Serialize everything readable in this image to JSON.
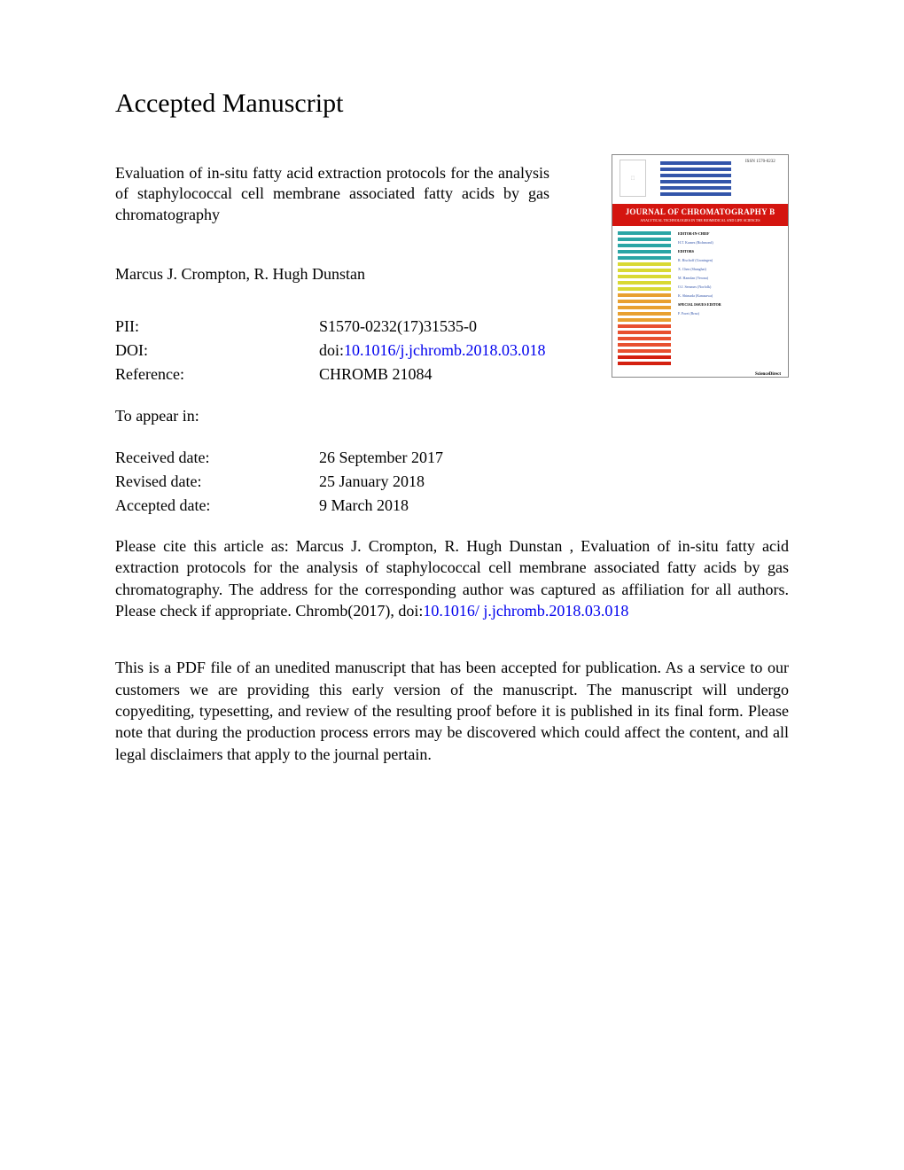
{
  "header": {
    "title": "Accepted Manuscript"
  },
  "article": {
    "title": "Evaluation of in-situ fatty acid extraction protocols for the analysis of staphylococcal cell membrane associated fatty acids by gas chromatography",
    "authors": "Marcus J. Crompton, R. Hugh Dunstan"
  },
  "meta": {
    "pii_label": "PII:",
    "pii_value": "S1570-0232(17)31535-0",
    "doi_label": "DOI:",
    "doi_prefix": "doi:",
    "doi_link": "10.1016/j.jchromb.2018.03.018",
    "ref_label": "Reference:",
    "ref_value": "CHROMB 21084",
    "appear_label": "To appear in:",
    "received_label": "Received date:",
    "received_value": "26 September 2017",
    "revised_label": "Revised date:",
    "revised_value": "25 January 2018",
    "accepted_label": "Accepted date:",
    "accepted_value": "9 March 2018"
  },
  "citation": {
    "prefix": "Please cite this article as: Marcus J. Crompton, R. Hugh Dunstan , Evaluation of in-situ fatty acid extraction protocols for the analysis of staphylococcal cell membrane associated fatty acids by gas chromatography. The address for the corresponding author was captured as affiliation for all authors. Please check if appropriate. Chromb(2017), doi:",
    "link": "10.1016/ j.jchromb.2018.03.018"
  },
  "disclaimer": "This is a PDF file of an unedited manuscript that has been accepted for publication. As a service to our customers we are providing this early version of the manuscript. The manuscript will undergo copyediting, typesetting, and review of the resulting proof before it is published in its final form. Please note that during the production process errors may be discovered which could affect the content, and all legal disclaimers that apply to the journal pertain.",
  "cover": {
    "issn": "ISSN 1570-0232",
    "journal_title": "JOURNAL OF CHROMATOGRAPHY B",
    "journal_sub": "ANALYTICAL TECHNOLOGIES IN THE BIOMEDICAL AND LIFE SCIENCES",
    "footer": "ScienceDirect",
    "top_line_color": "#3355aa",
    "body_lines": [
      "#2aa5a5",
      "#2aa5a5",
      "#2aa5a5",
      "#2aa5a5",
      "#2aa5a5",
      "#d9d933",
      "#d9d933",
      "#d9d933",
      "#d9d933",
      "#d9d933",
      "#e8a030",
      "#e8a030",
      "#e8a030",
      "#e8a030",
      "#e8a030",
      "#e85030",
      "#e85030",
      "#e85030",
      "#e85030",
      "#e85030",
      "#d42010",
      "#d42010"
    ],
    "body_sections": [
      "EDITOR-IN-CHIEF",
      "H.T. Karnes (Richmond)",
      "EDITORS",
      "R. Bischoff (Groningen)",
      "X. Chen (Shanghai)",
      "M. Hamdan (Verona)",
      "O.J. Semmes (Norfolk)",
      "K. Shimada (Kanazawa)",
      "SPECIAL ISSUES EDITOR",
      "F. Foret (Brno)"
    ]
  }
}
